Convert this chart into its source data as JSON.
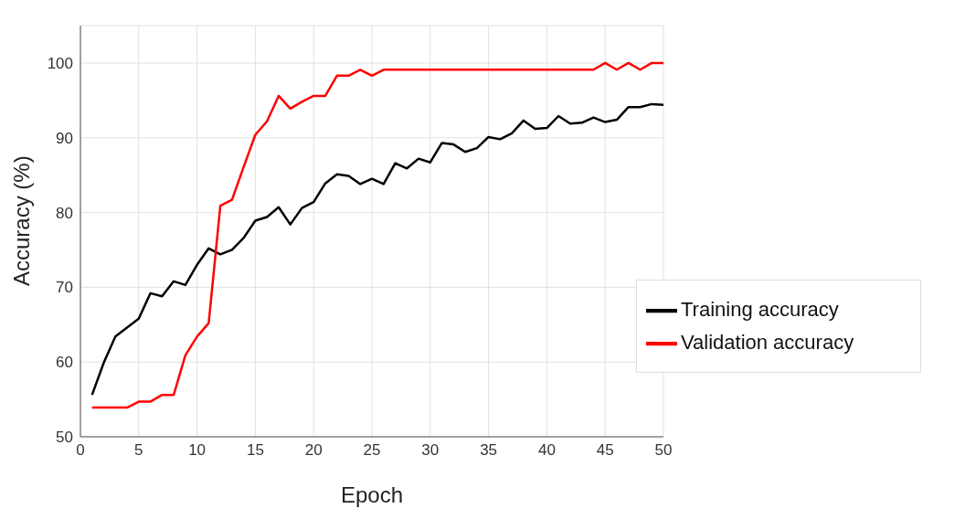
{
  "chart_data": {
    "type": "line",
    "xlabel": "Epoch",
    "ylabel": "Accuracy (%)",
    "x": [
      1,
      2,
      3,
      4,
      5,
      6,
      7,
      8,
      9,
      10,
      11,
      12,
      13,
      14,
      15,
      16,
      17,
      18,
      19,
      20,
      21,
      22,
      23,
      24,
      25,
      26,
      27,
      28,
      29,
      30,
      31,
      32,
      33,
      34,
      35,
      36,
      37,
      38,
      39,
      40,
      41,
      42,
      43,
      44,
      45,
      46,
      47,
      48,
      49,
      50
    ],
    "series": [
      {
        "name": "Training accuracy",
        "color": "#000000",
        "values": [
          55.6,
          59.9,
          63.4,
          64.6,
          65.8,
          69.2,
          68.8,
          70.8,
          70.3,
          73.0,
          75.2,
          74.4,
          75.0,
          76.6,
          78.9,
          79.4,
          80.7,
          78.4,
          80.6,
          81.4,
          83.9,
          85.1,
          84.9,
          83.8,
          84.5,
          83.8,
          86.6,
          85.9,
          87.2,
          86.7,
          89.3,
          89.1,
          88.1,
          88.6,
          90.1,
          89.8,
          90.6,
          92.3,
          91.2,
          91.3,
          92.9,
          91.9,
          92.0,
          92.7,
          92.1,
          92.4,
          94.1,
          94.1,
          94.5,
          94.4
        ]
      },
      {
        "name": "Validation accuracy",
        "color": "#ff0000",
        "values": [
          53.9,
          53.9,
          53.9,
          53.9,
          54.7,
          54.7,
          55.6,
          55.6,
          60.9,
          63.4,
          65.2,
          80.9,
          81.7,
          86.1,
          90.4,
          92.2,
          95.6,
          93.9,
          94.8,
          95.6,
          95.6,
          98.3,
          98.3,
          99.1,
          98.3,
          99.1,
          99.1,
          99.1,
          99.1,
          99.1,
          99.1,
          99.1,
          99.1,
          99.1,
          99.1,
          99.1,
          99.1,
          99.1,
          99.1,
          99.1,
          99.1,
          99.1,
          99.1,
          99.1,
          100,
          99.1,
          100,
          99.1,
          100,
          100
        ]
      }
    ],
    "xlim": [
      0,
      50
    ],
    "xticks": [
      0,
      5,
      10,
      15,
      20,
      25,
      30,
      35,
      40,
      45,
      50
    ],
    "ylim": [
      50,
      105
    ],
    "yticks": [
      50,
      60,
      70,
      80,
      90,
      100
    ],
    "grid": true,
    "legend": "bottom right",
    "marker": "none",
    "line_style": "solid"
  }
}
